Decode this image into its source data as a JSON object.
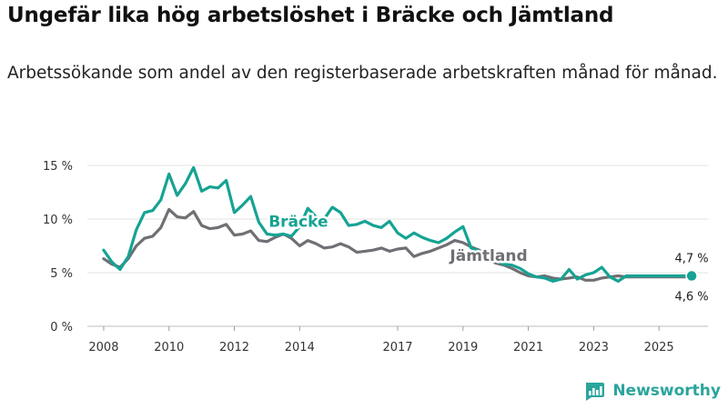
{
  "title": "Ungefär lika hög arbetslöshet i Bräcke och Jämtland",
  "subtitle": "Arbetssökande som andel av den registerbaserade arbetskraften månad för månad.",
  "brand": {
    "name": "Newsworthy",
    "color": "#2aa59c"
  },
  "chart_data": {
    "type": "line",
    "ylim": [
      0,
      15
    ],
    "xlim": [
      2007.5,
      2026.5
    ],
    "grid": true,
    "y_ticks": [
      0,
      5,
      10,
      15
    ],
    "y_tick_labels": [
      "0 %",
      "5 %",
      "10 %",
      "15 %"
    ],
    "x_ticks": [
      2008,
      2010,
      2012,
      2014,
      2017,
      2019,
      2021,
      2023,
      2025
    ],
    "x_tick_labels": [
      "2008",
      "2010",
      "2012",
      "2014",
      "2017",
      "2019",
      "2021",
      "2023",
      "2025"
    ],
    "series": [
      {
        "name": "Bräcke",
        "color": "#15a393",
        "x": [
          2008.0,
          2008.25,
          2008.5,
          2008.75,
          2009.0,
          2009.25,
          2009.5,
          2009.75,
          2010.0,
          2010.25,
          2010.5,
          2010.75,
          2011.0,
          2011.25,
          2011.5,
          2011.75,
          2012.0,
          2012.25,
          2012.5,
          2012.75,
          2013.0,
          2013.25,
          2013.5,
          2013.75,
          2014.0,
          2014.25,
          2014.5,
          2014.75,
          2015.0,
          2015.25,
          2015.5,
          2015.75,
          2016.0,
          2016.25,
          2016.5,
          2016.75,
          2017.0,
          2017.25,
          2017.5,
          2017.75,
          2018.0,
          2018.25,
          2018.5,
          2018.75,
          2019.0,
          2019.25,
          2019.5,
          2019.75,
          2020.0,
          2020.25,
          2020.5,
          2020.75,
          2021.0,
          2021.25,
          2021.5,
          2021.75,
          2022.0,
          2022.25,
          2022.5,
          2022.75,
          2023.0,
          2023.25,
          2023.5,
          2023.75,
          2024.0,
          2024.25,
          2024.5,
          2024.75,
          2025.0,
          2025.25,
          2025.5,
          2025.75,
          2026.0
        ],
        "values": [
          7.1,
          6.0,
          5.3,
          6.5,
          9.0,
          10.6,
          10.8,
          11.8,
          14.2,
          12.2,
          13.3,
          14.8,
          12.6,
          13.0,
          12.9,
          13.6,
          10.6,
          11.3,
          12.1,
          9.7,
          8.6,
          8.5,
          8.6,
          8.4,
          9.3,
          11.0,
          10.2,
          10.0,
          11.1,
          10.6,
          9.4,
          9.5,
          9.8,
          9.4,
          9.2,
          9.8,
          8.7,
          8.2,
          8.7,
          8.3,
          8.0,
          7.8,
          8.2,
          8.8,
          9.3,
          7.3,
          7.0,
          6.4,
          6.2,
          5.8,
          5.7,
          5.4,
          4.9,
          4.6,
          4.5,
          4.2,
          4.4,
          5.3,
          4.4,
          4.8,
          5.0,
          5.5,
          4.6,
          4.2,
          4.7,
          4.7,
          4.7,
          4.7,
          4.7,
          4.7,
          4.7,
          4.7,
          4.7
        ]
      },
      {
        "name": "Jämtland",
        "color": "#6f6f74",
        "x": [
          2008.0,
          2008.25,
          2008.5,
          2008.75,
          2009.0,
          2009.25,
          2009.5,
          2009.75,
          2010.0,
          2010.25,
          2010.5,
          2010.75,
          2011.0,
          2011.25,
          2011.5,
          2011.75,
          2012.0,
          2012.25,
          2012.5,
          2012.75,
          2013.0,
          2013.25,
          2013.5,
          2013.75,
          2014.0,
          2014.25,
          2014.5,
          2014.75,
          2015.0,
          2015.25,
          2015.5,
          2015.75,
          2016.0,
          2016.25,
          2016.5,
          2016.75,
          2017.0,
          2017.25,
          2017.5,
          2017.75,
          2018.0,
          2018.25,
          2018.5,
          2018.75,
          2019.0,
          2019.25,
          2019.5,
          2019.75,
          2020.0,
          2020.25,
          2020.5,
          2020.75,
          2021.0,
          2021.25,
          2021.5,
          2021.75,
          2022.0,
          2022.25,
          2022.5,
          2022.75,
          2023.0,
          2023.25,
          2023.5,
          2023.75,
          2024.0,
          2024.25,
          2024.5,
          2024.75,
          2025.0,
          2025.25,
          2025.5,
          2025.75,
          2026.0
        ],
        "values": [
          6.3,
          5.8,
          5.5,
          6.3,
          7.5,
          8.2,
          8.4,
          9.2,
          10.9,
          10.2,
          10.1,
          10.7,
          9.4,
          9.1,
          9.2,
          9.5,
          8.5,
          8.6,
          8.9,
          8.0,
          7.9,
          8.3,
          8.6,
          8.2,
          7.5,
          8.0,
          7.7,
          7.3,
          7.4,
          7.7,
          7.4,
          6.9,
          7.0,
          7.1,
          7.3,
          7.0,
          7.2,
          7.3,
          6.5,
          6.8,
          7.0,
          7.3,
          7.6,
          8.0,
          7.8,
          7.4,
          7.1,
          6.3,
          5.9,
          5.7,
          5.4,
          5.0,
          4.7,
          4.6,
          4.7,
          4.5,
          4.4,
          4.5,
          4.6,
          4.3,
          4.3,
          4.5,
          4.6,
          4.7,
          4.6,
          4.6,
          4.6,
          4.6,
          4.6,
          4.6,
          4.6,
          4.6,
          4.6
        ]
      }
    ],
    "series_labels": [
      "Bräcke",
      "Jämtland"
    ],
    "end_labels": [
      "4,7 %",
      "4,6 %"
    ]
  }
}
